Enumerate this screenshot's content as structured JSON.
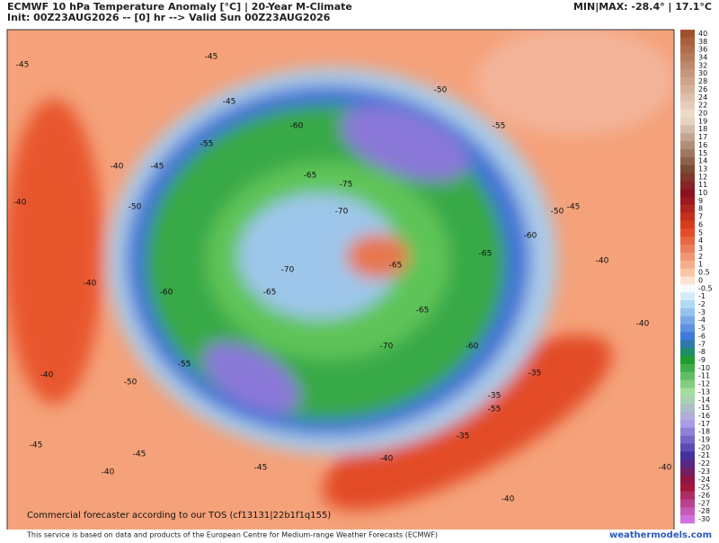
{
  "header": {
    "title": "ECMWF 10 hPa Temperature Anomaly [°C] | 20-Year M-Climate",
    "init": "Init: 00Z23AUG2026 -- [0] hr --> Valid Sun 00Z23AUG2026",
    "minmax": "MIN|MAX: -28.4° | 17.1°C"
  },
  "map": {
    "watermark": "Commercial forecaster according to our TOS (cf13131|22b1f1q155)",
    "contour_labels": [
      "-45",
      "-45",
      "-45",
      "-40",
      "-40",
      "-45",
      "-40",
      "-40",
      "-40",
      "-45",
      "-50",
      "-55",
      "-60",
      "-65",
      "-70",
      "-75",
      "-70",
      "-65",
      "-60",
      "-55",
      "-50",
      "-50",
      "-55",
      "-60",
      "-65",
      "-65",
      "-70",
      "-65",
      "-60",
      "-55",
      "-50",
      "-45",
      "-40",
      "-35",
      "-35",
      "-35",
      "-40",
      "-40",
      "-45",
      "-45",
      "-40",
      "-40"
    ]
  },
  "colorbar": {
    "labels": [
      "40",
      "38",
      "36",
      "34",
      "32",
      "30",
      "28",
      "26",
      "24",
      "22",
      "20",
      "19",
      "18",
      "17",
      "16",
      "15",
      "14",
      "13",
      "12",
      "11",
      "10",
      "9",
      "8",
      "7",
      "6",
      "5",
      "4",
      "3",
      "2",
      "1",
      "0.5",
      "0",
      "-0.5",
      "-1",
      "-2",
      "-3",
      "-4",
      "-5",
      "-6",
      "-7",
      "-8",
      "-9",
      "-10",
      "-11",
      "-12",
      "-13",
      "-14",
      "-15",
      "-16",
      "-17",
      "-18",
      "-19",
      "-20",
      "-21",
      "-22",
      "-23",
      "-24",
      "-25",
      "-26",
      "-27",
      "-28",
      "-30"
    ]
  },
  "footer": {
    "credit": "This service is based on data and products of the European Centre for Medium-range Weather Forecasts (ECMWF)",
    "site": "weathermodels.com"
  }
}
